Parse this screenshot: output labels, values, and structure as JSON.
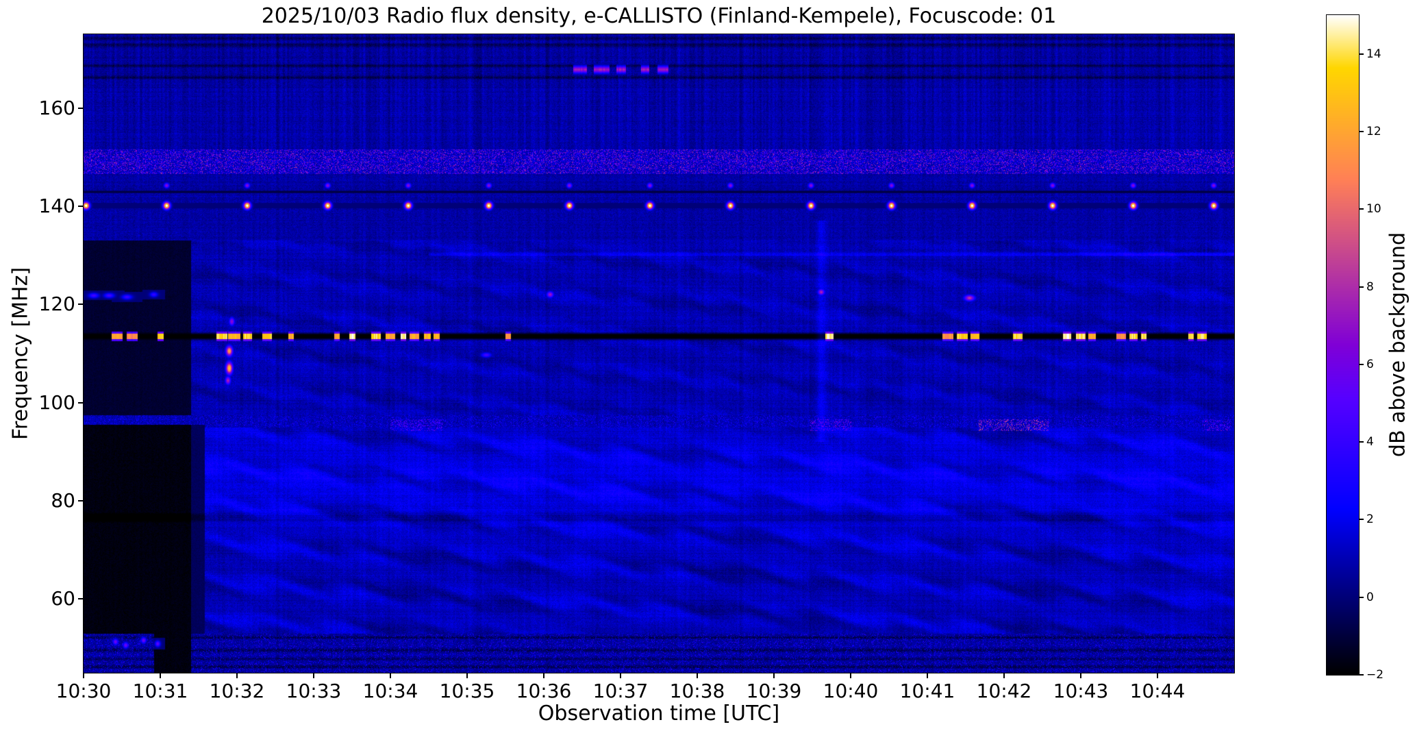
{
  "title": "2025/10/03  Radio flux density, e-CALLISTO (Finland-Kempele), Focuscode: 01",
  "colors": {
    "background": "#ffffff",
    "text": "#000000",
    "axes": "#000000"
  },
  "chart_data": {
    "type": "heatmap",
    "title": "2025/10/03  Radio flux density, e-CALLISTO (Finland-Kempele), Focuscode: 01",
    "xlabel": "Observation time [UTC]",
    "ylabel": "Frequency [MHz]",
    "colorbar_label": "dB above background",
    "x_range_utc": [
      "10:30",
      "10:45"
    ],
    "x_ticks": [
      "10:30",
      "10:31",
      "10:32",
      "10:33",
      "10:34",
      "10:35",
      "10:36",
      "10:37",
      "10:38",
      "10:39",
      "10:40",
      "10:41",
      "10:42",
      "10:43",
      "10:44"
    ],
    "y_range_mhz": [
      45,
      175
    ],
    "y_ticks": [
      160,
      140,
      120,
      100,
      80,
      60
    ],
    "color_scale": {
      "colormap": "gnuplot2",
      "vmin": -2,
      "vmax": 15,
      "ticks": [
        14,
        12,
        10,
        8,
        6,
        4,
        2,
        0,
        -2
      ]
    },
    "grid": false,
    "features": {
      "background": {
        "pixel_noise": 0.55,
        "column_noise": 0.33,
        "row_noise": 0.22,
        "high_freq_stripe_boost": 2.1
      },
      "bands": [
        {
          "f": [
            45,
            53
          ],
          "mean": 0.55,
          "speckle_p": 0.14,
          "speckle_base": 1.4,
          "speckle_span": 2.6,
          "dark_rows": [
            46.2,
            47.8,
            49.6,
            52.2
          ]
        },
        {
          "f": [
            53,
            95
          ],
          "mean": 1.0
        },
        {
          "f": [
            95,
            97.5
          ],
          "mean": 0.85,
          "speckle_p": 0.18,
          "speckle_base": 1.4,
          "speckle_span": 2.2
        },
        {
          "f": [
            97.5,
            133
          ],
          "mean": 0.9
        },
        {
          "f": [
            133,
            146.5
          ],
          "mean": 0.7
        },
        {
          "f": [
            146.5,
            151.5
          ],
          "mean": 1.1,
          "speckle_p": 0.3,
          "speckle_base": 2.2,
          "speckle_span": 6.3
        },
        {
          "f": [
            151.5,
            164
          ],
          "mean": 0.75
        },
        {
          "f": [
            164,
            175
          ],
          "mean": 0.55,
          "dark_rows": [
            166.2,
            168.6,
            172.8,
            174.1
          ]
        }
      ],
      "low_band_bump": {
        "f0": 84,
        "sigma": 10,
        "amp": 0.8
      },
      "waves": [
        {
          "f": [
            53,
            95
          ],
          "lambda_f": 7.5,
          "t_period": 55,
          "meander": 1.0,
          "amp": 0.8,
          "drift": 0.006
        },
        {
          "f": [
            97.5,
            133
          ],
          "lambda_f": 6.0,
          "t_period": 38,
          "meander": 0.8,
          "amp": 0.5,
          "drift": 0.008
        }
      ],
      "dark_regions": [
        {
          "t": [
            0,
            84
          ],
          "f": [
            53,
            95.5
          ],
          "level": -1.75
        },
        {
          "t": [
            55,
            84
          ],
          "f": [
            45,
            53
          ],
          "level": -1.75
        },
        {
          "t": [
            0,
            84
          ],
          "f": [
            97.5,
            133
          ],
          "level": -1.2
        },
        {
          "t": [
            84,
            95
          ],
          "f": [
            53,
            95.5
          ],
          "level": -0.5
        }
      ],
      "h_lines": [
        {
          "f": 113.5,
          "half_width": 0.9,
          "level": -2.0
        },
        {
          "f": 140.1,
          "half_width": 0.6,
          "level": -1.8
        },
        {
          "f": 142.9,
          "half_width": 0.35,
          "level": -0.9
        },
        {
          "f": 76.6,
          "half_width": 1.1,
          "add": -0.7
        },
        {
          "f": 130.2,
          "half_width": 0.45,
          "add": 1.1,
          "t": [
            270,
            900
          ],
          "ramp_from": 700,
          "ramp_add": 0.9
        }
      ],
      "line_113_bursts": {
        "f": 113.5,
        "half_width": 0.55,
        "db_min": 11,
        "db_max": 15,
        "dashes": [
          [
            22,
            30
          ],
          [
            34,
            42
          ],
          [
            58,
            62
          ],
          [
            104,
            112
          ],
          [
            113,
            122
          ],
          [
            125,
            131
          ],
          [
            140,
            147
          ],
          [
            160,
            164
          ],
          [
            196,
            200
          ],
          [
            208,
            212
          ],
          [
            225,
            232
          ],
          [
            236,
            243
          ],
          [
            248,
            252
          ],
          [
            255,
            262
          ],
          [
            266,
            271
          ],
          [
            274,
            278
          ],
          [
            330,
            334
          ],
          [
            580,
            586
          ],
          [
            672,
            680
          ],
          [
            683,
            691
          ],
          [
            694,
            700
          ],
          [
            727,
            734
          ],
          [
            766,
            772
          ],
          [
            776,
            783
          ],
          [
            786,
            791
          ],
          [
            808,
            815
          ],
          [
            818,
            824
          ],
          [
            827,
            831
          ],
          [
            864,
            868
          ],
          [
            871,
            878
          ]
        ]
      },
      "beacon_140": {
        "f": 140.1,
        "sigma_f": 0.5,
        "sigma_t": 1.8,
        "first_t": 2,
        "period": 63,
        "count": 15,
        "db": 16,
        "companion": {
          "f": 144.2,
          "sigma_f": 0.35,
          "sigma_t": 1.4,
          "db": 7
        }
      },
      "rfi_167": {
        "f": 167.8,
        "half_width": 0.5,
        "db": 7.5,
        "dashes": [
          [
            383,
            393
          ],
          [
            399,
            411
          ],
          [
            417,
            424
          ],
          [
            436,
            442
          ],
          [
            449,
            457
          ]
        ]
      },
      "fm_95_clusters": [
        {
          "t": [
            240,
            280
          ],
          "db": 6.5
        },
        {
          "t": [
            568,
            600
          ],
          "db": 7
        },
        {
          "t": [
            700,
            755
          ],
          "db": 10
        },
        {
          "t": [
            875,
            897
          ],
          "db": 7
        }
      ],
      "point_bursts": [
        {
          "t": 114,
          "f": 107.0,
          "w": 2.5,
          "h": 1.2,
          "db": 13
        },
        {
          "t": 114,
          "f": 110.5,
          "w": 2.5,
          "h": 1.0,
          "db": 12
        },
        {
          "t": 113,
          "f": 104.5,
          "w": 2.0,
          "h": 0.8,
          "db": 8
        },
        {
          "t": 116,
          "f": 116.5,
          "w": 2.0,
          "h": 0.8,
          "db": 7
        },
        {
          "t": 8,
          "f": 121.8,
          "w": 4.0,
          "h": 0.5,
          "db": 4.5
        },
        {
          "t": 20,
          "f": 121.8,
          "w": 4.0,
          "h": 0.5,
          "db": 4.5
        },
        {
          "t": 34,
          "f": 121.5,
          "w": 4.0,
          "h": 0.5,
          "db": 4.2
        },
        {
          "t": 55,
          "f": 122.0,
          "w": 3.0,
          "h": 0.5,
          "db": 4.0
        },
        {
          "t": 315,
          "f": 109.7,
          "w": 4.0,
          "h": 0.5,
          "db": 4.5
        },
        {
          "t": 365,
          "f": 122.0,
          "w": 2.5,
          "h": 0.6,
          "db": 7.5
        },
        {
          "t": 577,
          "f": 122.5,
          "w": 2.5,
          "h": 0.6,
          "db": 8
        },
        {
          "t": 693,
          "f": 121.3,
          "w": 4.0,
          "h": 0.6,
          "db": 8.5
        },
        {
          "t": 25,
          "f": 51.3,
          "w": 2.0,
          "h": 0.6,
          "db": 6
        },
        {
          "t": 33,
          "f": 50.6,
          "w": 2.0,
          "h": 0.6,
          "db": 6
        },
        {
          "t": 47,
          "f": 51.6,
          "w": 2.0,
          "h": 0.6,
          "db": 6
        },
        {
          "t": 58,
          "f": 50.9,
          "w": 2.0,
          "h": 0.6,
          "db": 5.5
        }
      ],
      "v_lines": [
        {
          "t": 577,
          "f": [
            92,
            137
          ],
          "sigma_t": 2.5,
          "add": 1.2
        }
      ]
    }
  }
}
